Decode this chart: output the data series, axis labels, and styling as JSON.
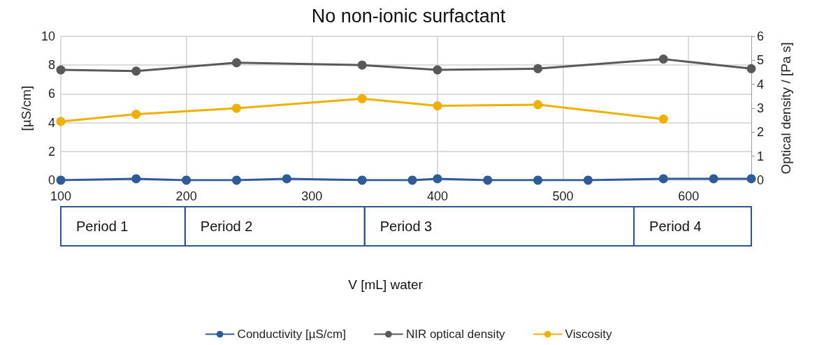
{
  "chart_data": {
    "type": "line",
    "title": "No non-ionic surfactant",
    "ylabel": "[µS/cm]",
    "y2label": "Optical density / [Pa s]",
    "xlim": [
      100,
      650
    ],
    "xticks": [
      100,
      200,
      300,
      400,
      500,
      600
    ],
    "ylim": [
      0,
      10
    ],
    "yticks": [
      0,
      2,
      4,
      6,
      8,
      10
    ],
    "y2lim": [
      0,
      6
    ],
    "y2ticks": [
      0,
      1,
      2,
      3,
      4,
      5,
      6
    ],
    "series": [
      {
        "name": "Conductivity [µS/cm]",
        "color": "#2f5c99",
        "x": [
          100,
          160,
          200,
          240,
          280,
          340,
          380,
          400,
          440,
          480,
          520,
          580,
          620,
          650
        ],
        "values": [
          0,
          0.1,
          0,
          0,
          0.1,
          0,
          0,
          0.1,
          0,
          0,
          0,
          0.1,
          0.1,
          0.1
        ]
      },
      {
        "name": "NIR optical density",
        "color": "#595959",
        "axis": "y2",
        "x": [
          100,
          160,
          240,
          340,
          400,
          480,
          580,
          650
        ],
        "values": [
          4.6,
          4.55,
          4.9,
          4.8,
          4.6,
          4.65,
          5.05,
          4.65
        ]
      },
      {
        "name": "Viscosity",
        "color": "#f0b000",
        "axis": "y2",
        "x": [
          100,
          160,
          240,
          340,
          400,
          480,
          580
        ],
        "values": [
          2.45,
          2.75,
          3.0,
          3.4,
          3.1,
          3.15,
          2.55
        ]
      }
    ],
    "annotations": [
      "Period 1",
      "Period 2",
      "Period 3",
      "Period 4",
      "V [mL] water"
    ],
    "grid": true,
    "legend": "bottom",
    "marker": "circle",
    "line_style": "solid"
  }
}
